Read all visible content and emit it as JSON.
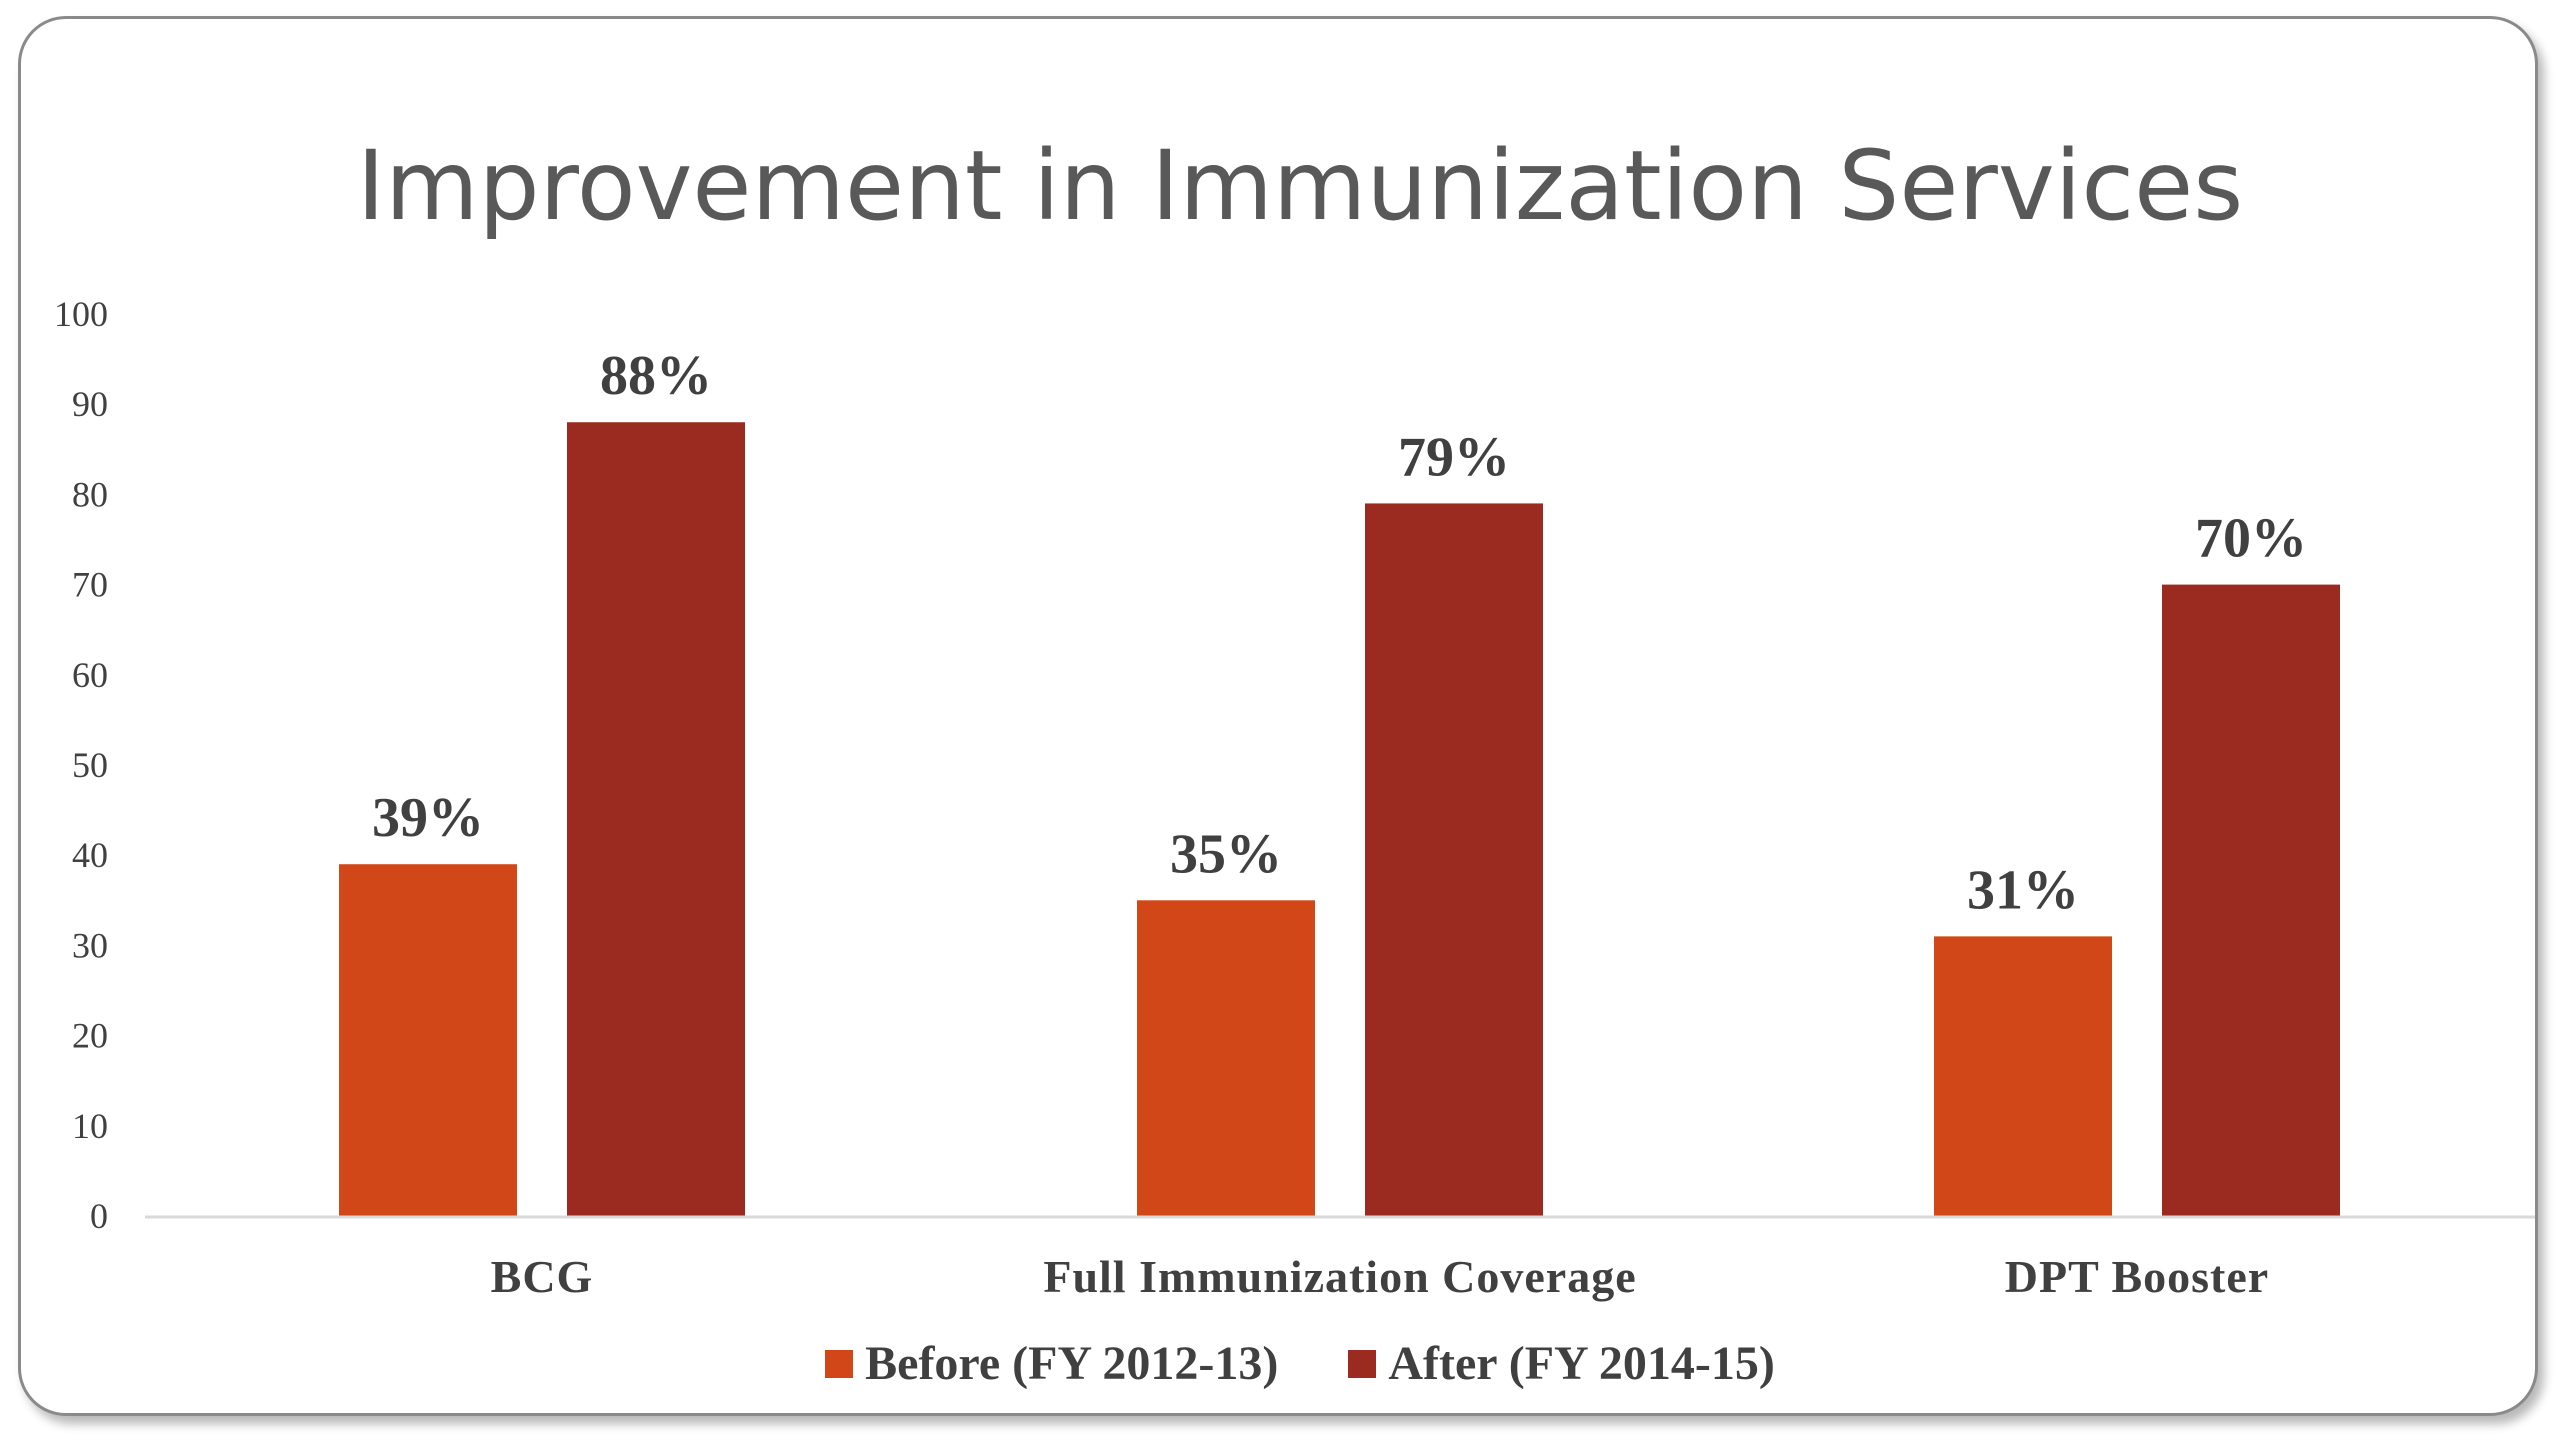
{
  "chart_data": {
    "type": "bar",
    "title": "Improvement in Immunization Services",
    "categories": [
      "BCG",
      "Full Immunization Coverage",
      "DPT Booster"
    ],
    "series": [
      {
        "name": "Before (FY 2012-13)",
        "values": [
          39,
          35,
          31
        ],
        "labels": [
          "39%",
          "35%",
          "31%"
        ],
        "color": "#D24717"
      },
      {
        "name": "After (FY 2014-15)",
        "values": [
          88,
          79,
          70
        ],
        "labels": [
          "88%",
          "79%",
          "70%"
        ],
        "color": "#9B2B20"
      }
    ],
    "ylim": [
      0,
      100
    ],
    "yticks": [
      "0",
      "10",
      "20",
      "30",
      "40",
      "50",
      "60",
      "70",
      "80",
      "90",
      "100"
    ],
    "grid": false,
    "legend_position": "bottom"
  }
}
